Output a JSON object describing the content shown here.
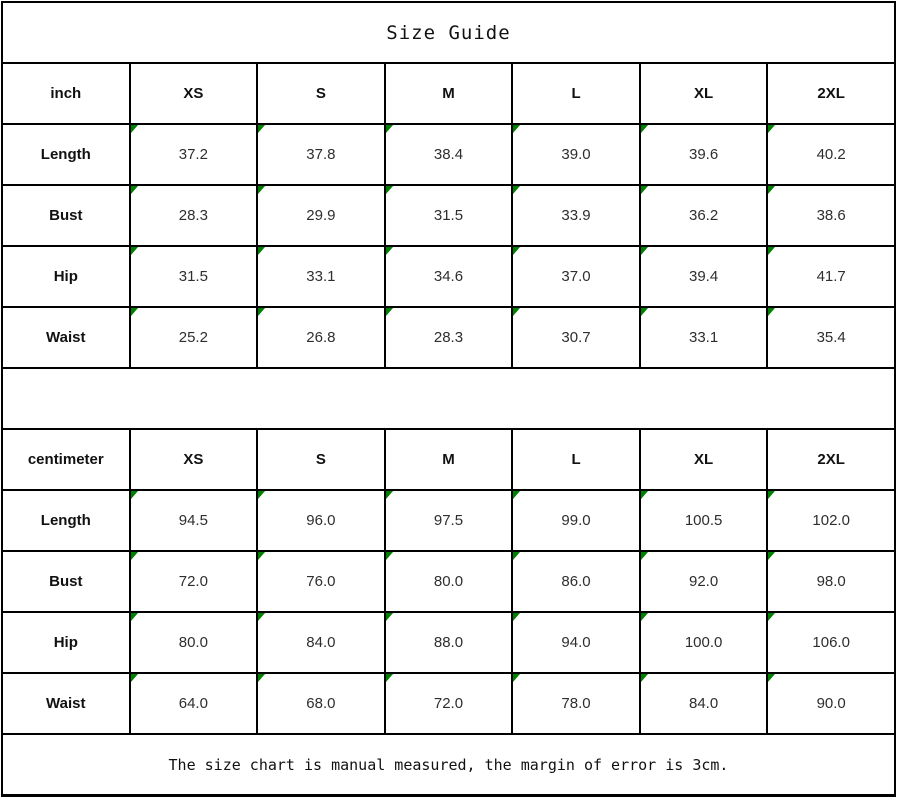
{
  "title": "Size Guide",
  "footer_note": "The size chart is manual measured, the margin of error is 3cm.",
  "colors": {
    "cell_marker_green": "#008000",
    "border_black": "#000000",
    "background": "#ffffff"
  },
  "tables": [
    {
      "unit": "inch",
      "sizes": [
        "XS",
        "S",
        "M",
        "L",
        "XL",
        "2XL"
      ],
      "rows": [
        {
          "label": "Length",
          "values": [
            "37.2",
            "37.8",
            "38.4",
            "39.0",
            "39.6",
            "40.2"
          ]
        },
        {
          "label": "Bust",
          "values": [
            "28.3",
            "29.9",
            "31.5",
            "33.9",
            "36.2",
            "38.6"
          ]
        },
        {
          "label": "Hip",
          "values": [
            "31.5",
            "33.1",
            "34.6",
            "37.0",
            "39.4",
            "41.7"
          ]
        },
        {
          "label": "Waist",
          "values": [
            "25.2",
            "26.8",
            "28.3",
            "30.7",
            "33.1",
            "35.4"
          ]
        }
      ]
    },
    {
      "unit": "centimeter",
      "sizes": [
        "XS",
        "S",
        "M",
        "L",
        "XL",
        "2XL"
      ],
      "rows": [
        {
          "label": "Length",
          "values": [
            "94.5",
            "96.0",
            "97.5",
            "99.0",
            "100.5",
            "102.0"
          ]
        },
        {
          "label": "Bust",
          "values": [
            "72.0",
            "76.0",
            "80.0",
            "86.0",
            "92.0",
            "98.0"
          ]
        },
        {
          "label": "Hip",
          "values": [
            "80.0",
            "84.0",
            "88.0",
            "94.0",
            "100.0",
            "106.0"
          ]
        },
        {
          "label": "Waist",
          "values": [
            "64.0",
            "68.0",
            "72.0",
            "78.0",
            "84.0",
            "90.0"
          ]
        }
      ]
    }
  ]
}
